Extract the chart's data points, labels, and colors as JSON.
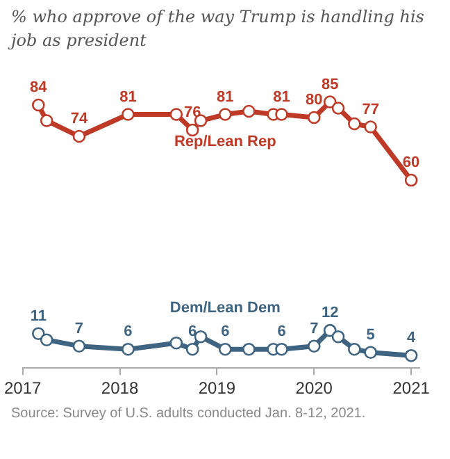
{
  "chart_data": {
    "type": "line",
    "title": "% who approve of the way Trump is handling his job as president",
    "x": [
      "2017-03",
      "2017-04",
      "2017-08",
      "2018-02",
      "2018-08",
      "2018-10",
      "2018-11",
      "2019-02",
      "2019-05",
      "2019-08",
      "2019-09",
      "2020-01",
      "2020-03",
      "2020-04",
      "2020-06",
      "2020-08",
      "2021-01"
    ],
    "series": [
      {
        "name": "Rep/Lean Rep",
        "color": "#bf3a26",
        "values": [
          84,
          79,
          74,
          81,
          81,
          76,
          79,
          81,
          82,
          81,
          81,
          80,
          85,
          83,
          78,
          77,
          60
        ],
        "value_labels": [
          "84",
          null,
          "74",
          "81",
          null,
          "76",
          null,
          "81",
          null,
          null,
          "81",
          "80",
          "85",
          null,
          null,
          "77",
          "60"
        ]
      },
      {
        "name": "Dem/Lean Dem",
        "color": "#3e6482",
        "values": [
          11,
          9,
          7,
          6,
          8,
          6,
          10,
          6,
          6,
          6,
          6,
          7,
          12,
          10,
          6,
          5,
          4
        ],
        "value_labels": [
          "11",
          null,
          "7",
          "6",
          null,
          "6",
          null,
          "6",
          null,
          null,
          "6",
          "7",
          "12",
          null,
          null,
          "5",
          "4"
        ]
      }
    ],
    "xlim": [
      "2017-01",
      "2021-02"
    ],
    "xticks": [
      "2017",
      "2018",
      "2019",
      "2020",
      "2021"
    ],
    "grid": false,
    "legend": false,
    "marker": "circle",
    "line_style": "solid",
    "tick_labels": "x",
    "annotations": [
      "Source: Survey of U.S. adults conducted Jan. 8-12, 2021."
    ]
  }
}
